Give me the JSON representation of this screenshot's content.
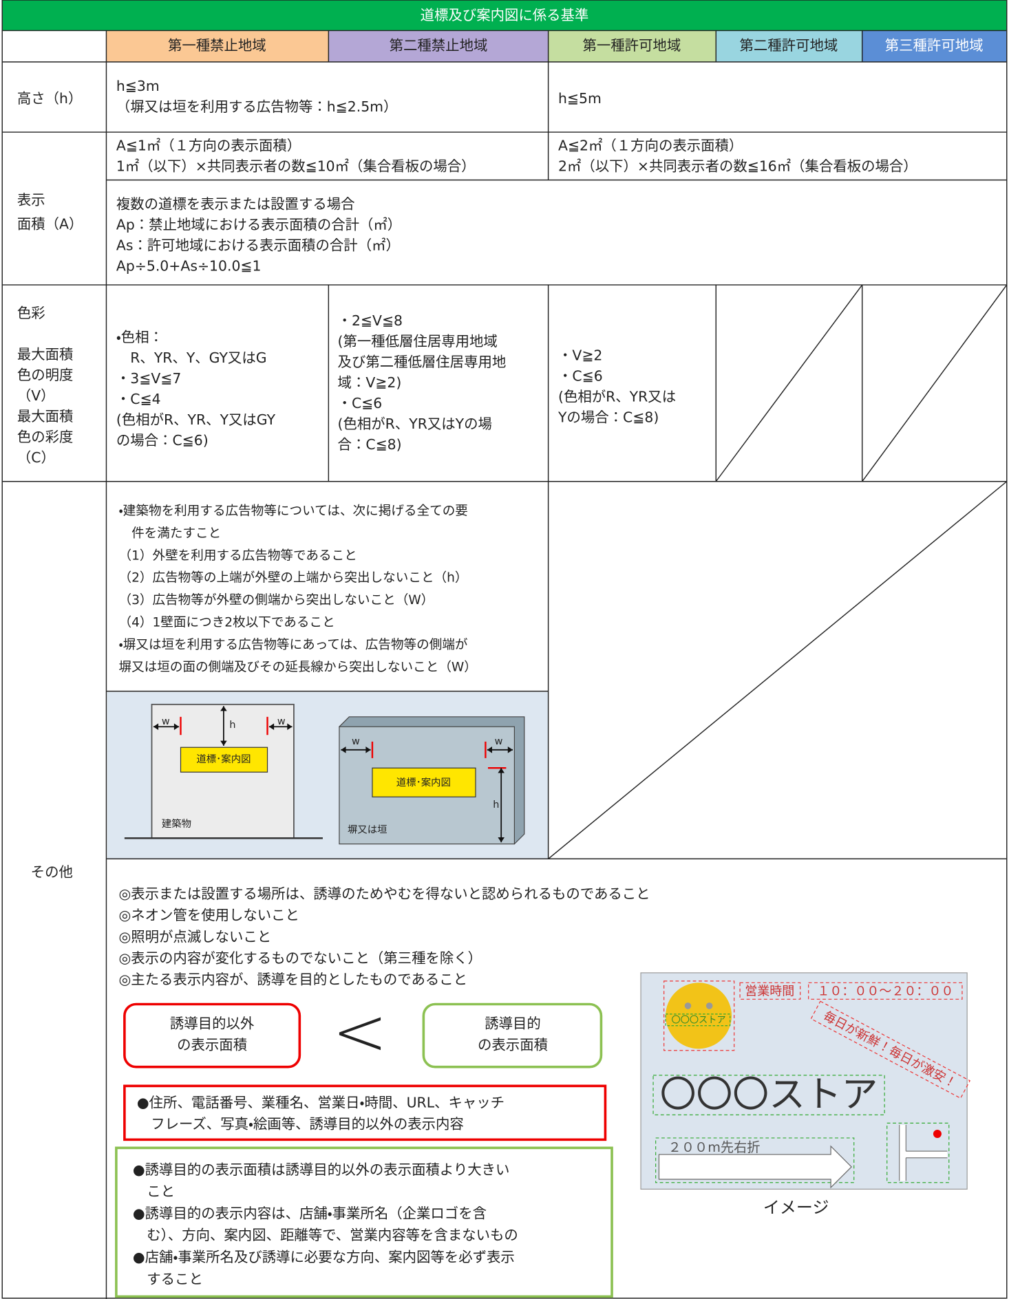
{
  "title": "道標及び案内図に係る基準",
  "headers": [
    "第一種禁止地域",
    "第二種禁止地域",
    "第一種許可地域",
    "第二種許可地域",
    "第三種許可地域"
  ],
  "rows": {
    "height": {
      "label": "高さ（h）",
      "prohibited": [
        "h≦3m",
        "（塀又は垣を利用する広告物等：h≦2.5m）"
      ],
      "permitted": [
        "h≦5m"
      ]
    },
    "area": {
      "label": [
        "表示",
        "面積（A）"
      ],
      "prohibited": [
        "A≦1㎡（１方向の表示面積）",
        "1㎡（以下）×共同表示者の数≦10㎡（集合看板の場合）"
      ],
      "permitted": [
        "A≦2㎡（１方向の表示面積）",
        "2㎡（以下）×共同表示者の数≦16㎡（集合看板の場合）"
      ],
      "multiple": [
        "複数の道標を表示または設置する場合",
        "Ap：禁止地域における表示面積の合計（㎡）",
        "As：許可地域における表示面積の合計（㎡）",
        "Ap÷5.0+As÷10.0≦1"
      ]
    },
    "color": {
      "label_top": "色彩",
      "label": [
        "最大面積",
        "色の明度",
        "（V）",
        "最大面積",
        "色の彩度",
        "（C）"
      ],
      "first_prohibited": [
        "・色相：",
        "　R、YR、Y、GY又はG",
        "・3≦V≦7",
        "・C≦4",
        "(色相がR、YR、Y又はGY",
        "の場合：C≦6)"
      ],
      "second_prohibited": [
        "・2≦V≦8",
        "(第一種低層住居専用地域",
        "及び第二種低層住居専用地",
        "域：V≧2)",
        "・C≦6",
        "(色相がR、YR又はYの場",
        "合：C≦8)"
      ],
      "first_permitted": [
        "・V≧2",
        "・C≦6",
        "(色相がR、YR又は",
        "Yの場合：C≦8)"
      ]
    },
    "other": {
      "label": "その他",
      "building_requirements": [
        "・建築物を利用する広告物等については、次に掲げる全ての要",
        "　件を満たすこと",
        "（1）外壁を利用する広告物等であること",
        "（2）広告物等の上端が外壁の上端から突出しないこと（h）",
        "（3）広告物等が外壁の側端から突出しないこと（W）",
        "（4）1壁面につき2枚以下であること",
        "・塀又は垣を利用する広告物等にあっては、広告物等の側端が",
        "塀又は垣の面の側端及びその延長線から突出しないこと（W）"
      ],
      "diagram": {
        "building": {
          "w_left": "w",
          "h": "h",
          "w_right": "w",
          "sign": "道標･案内図",
          "name": "建築物"
        },
        "wall": {
          "w_left": "w",
          "w_right": "w",
          "h": "h",
          "sign": "道標･案内図",
          "name": "塀又は垣"
        }
      },
      "general": [
        "◎表示または設置する場所は、誘導のためやむを得ないと認められるものであること",
        "◎ネオン管を使用しないこと",
        "◎照明が点滅しないこと",
        "◎表示の内容が変化するものでないこと（第三種を除く）",
        "◎主たる表示内容が、誘導を目的としたものであること"
      ],
      "comparison": {
        "non_guidance": [
          "誘導目的以外",
          "の表示面積"
        ],
        "symbol": "<",
        "guidance": [
          "誘導目的",
          "の表示面積"
        ]
      },
      "non_guidance_content": [
        "●住所、電話番号、業種名、営業日・時間、URL、キャッチ",
        "　フレーズ、写真・絵画等、誘導目的以外の表示内容"
      ],
      "guidance_rules": [
        "●誘導目的の表示面積は誘導目的以外の表示面積より大きい",
        "　こと",
        "●誘導目的の表示内容は、店舗・事業所名（企業ロゴを含",
        "　む）、方向、案内図、距離等で、営業内容等を含まないもの",
        "●店舗・事業所名及び誘導に必要な方向、案内図等を必ず表示",
        "　すること"
      ],
      "image": {
        "logo": "〇〇〇ストア",
        "hours_label": "営業時間",
        "hours": "１０：００～２０：００",
        "slogan": "毎日が新鮮！毎日が激安！",
        "store": "〇〇〇ストア",
        "direction": "２００m先右折",
        "caption": "イメージ"
      }
    }
  }
}
